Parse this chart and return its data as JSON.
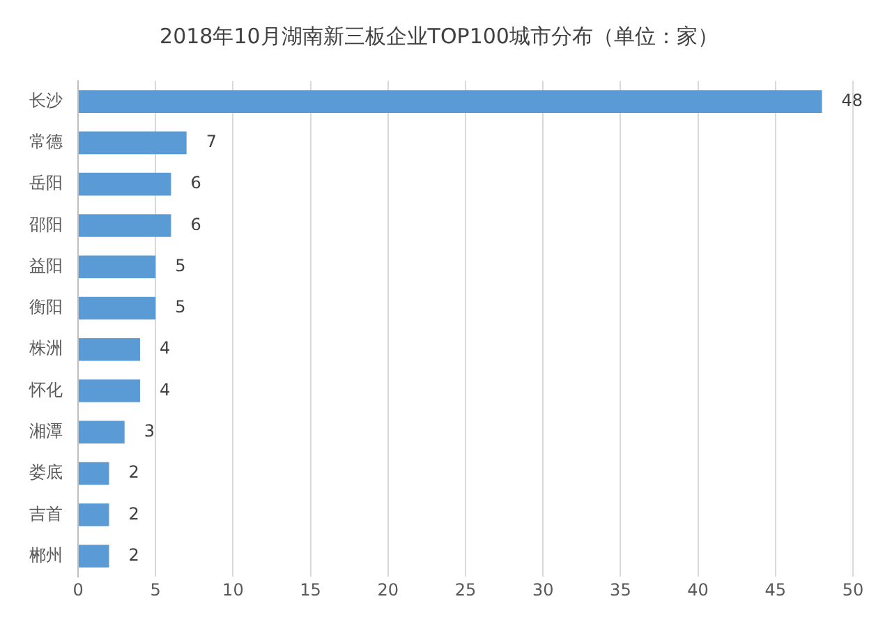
{
  "chart_data": {
    "type": "bar",
    "orientation": "horizontal",
    "title": "2018年10月湖南新三板企业TOP100城市分布（单位：家）",
    "categories": [
      "长沙",
      "常德",
      "岳阳",
      "邵阳",
      "益阳",
      "衡阳",
      "株洲",
      "怀化",
      "湘潭",
      "娄底",
      "吉首",
      "郴州"
    ],
    "values": [
      48,
      7,
      6,
      6,
      5,
      5,
      4,
      4,
      3,
      2,
      2,
      2
    ],
    "color": "#5b9bd5",
    "xlim": [
      0,
      50
    ],
    "xticks": [
      0,
      5,
      10,
      15,
      20,
      25,
      30,
      35,
      40,
      45,
      50
    ],
    "grid": "x",
    "data_labels": true
  }
}
